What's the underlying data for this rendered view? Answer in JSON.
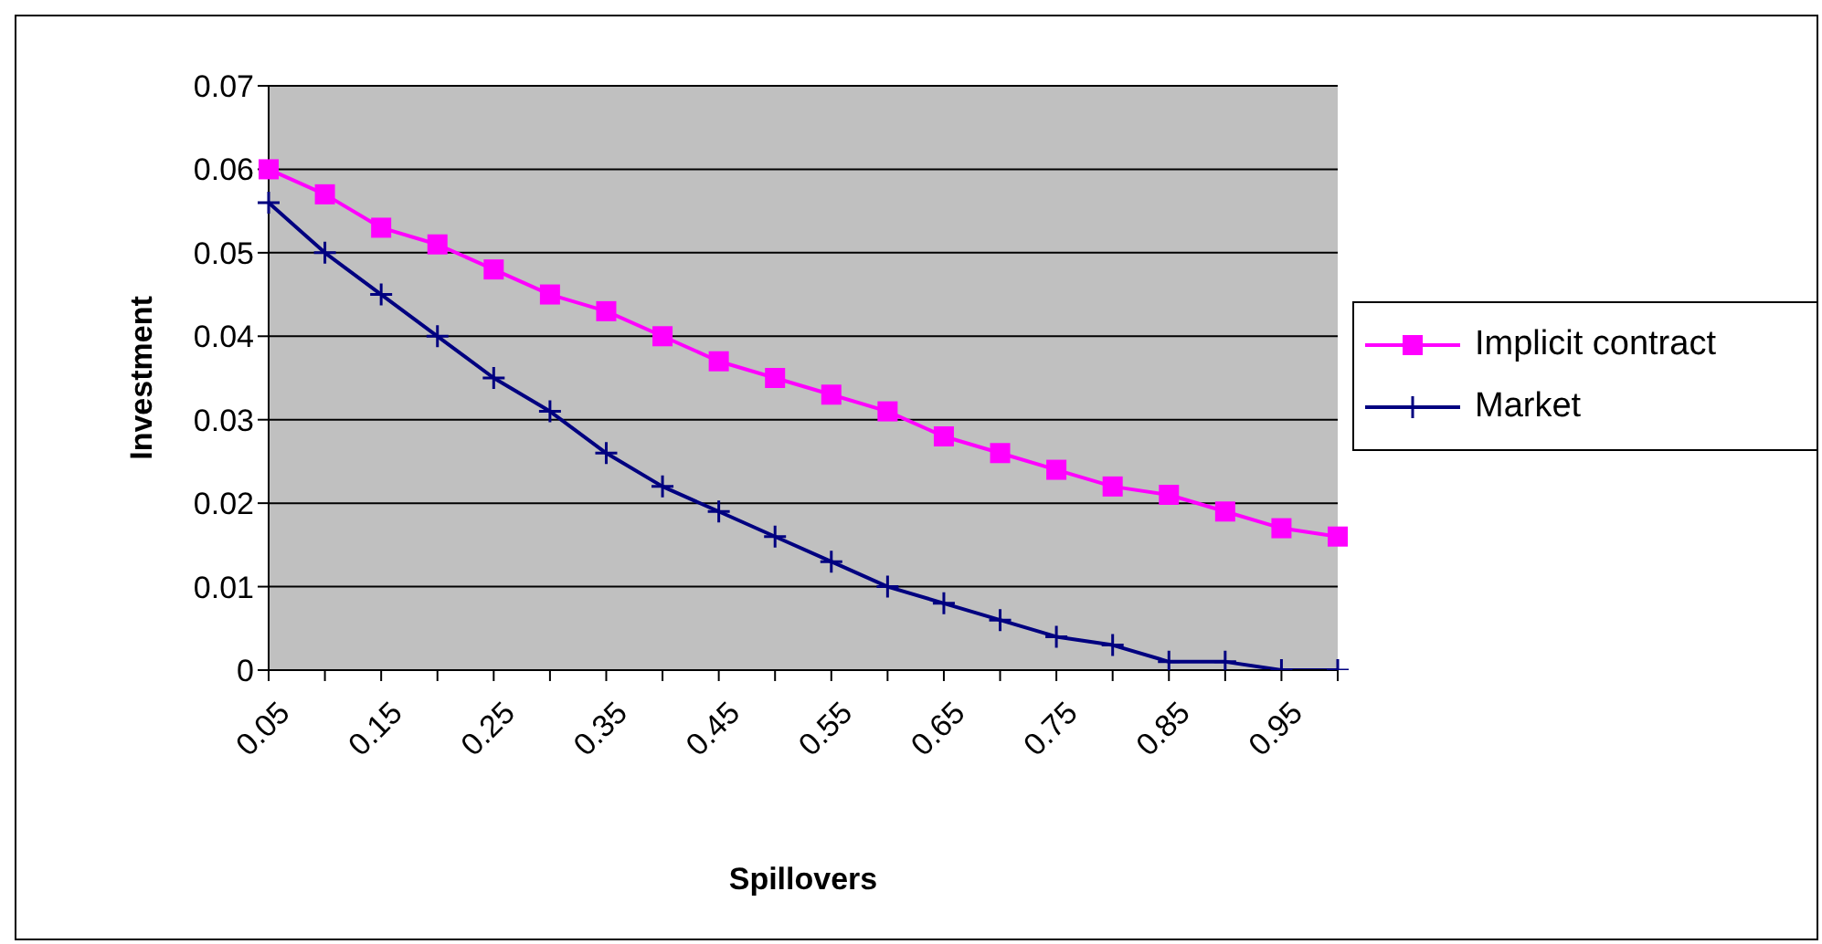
{
  "chart_data": {
    "type": "line",
    "xlabel": "Spillovers",
    "ylabel": "Investment",
    "categories": [
      "0.05",
      null,
      "0.15",
      null,
      "0.25",
      null,
      "0.35",
      null,
      "0.45",
      null,
      "0.55",
      null,
      "0.65",
      null,
      "0.75",
      null,
      "0.85",
      null,
      "0.95",
      null
    ],
    "series": [
      {
        "name": "Implicit contract",
        "color": "#ff00ff",
        "marker": "square",
        "values": [
          0.06,
          0.057,
          0.053,
          0.051,
          0.048,
          0.045,
          0.043,
          0.04,
          0.037,
          0.035,
          0.033,
          0.031,
          0.028,
          0.026,
          0.024,
          0.022,
          0.021,
          0.019,
          0.017,
          0.016
        ]
      },
      {
        "name": "Market",
        "color": "#000080",
        "marker": "cross",
        "values": [
          0.056,
          0.05,
          0.045,
          0.04,
          0.035,
          0.031,
          0.026,
          0.022,
          0.019,
          0.016,
          0.013,
          0.01,
          0.008,
          0.006,
          0.004,
          0.003,
          0.001,
          0.001,
          0.0,
          0.0
        ]
      }
    ],
    "ylim": [
      0,
      0.07
    ],
    "yticks": [
      0,
      0.01,
      0.02,
      0.03,
      0.04,
      0.05,
      0.06,
      0.07
    ],
    "grid": "y",
    "legend": "right",
    "line_style": "solid"
  }
}
